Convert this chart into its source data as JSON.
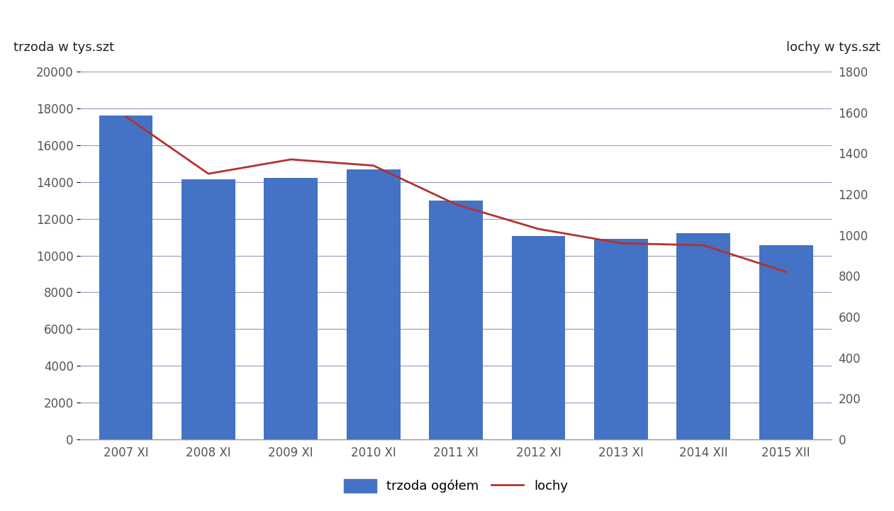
{
  "categories": [
    "2007 XI",
    "2008 XI",
    "2009 XI",
    "2010 XI",
    "2011 XI",
    "2012 XI",
    "2013 XI",
    "2014 XII",
    "2015 XII"
  ],
  "bar_values": [
    17600,
    14150,
    14200,
    14700,
    13000,
    11050,
    10900,
    11200,
    10550
  ],
  "line_values": [
    1580,
    1300,
    1370,
    1340,
    1150,
    1030,
    960,
    950,
    820
  ],
  "bar_color": "#4472C4",
  "line_color": "#B23232",
  "left_ylabel": "trzoda w tys.szt",
  "right_ylabel": "lochy w tys.szt",
  "left_ylim": [
    0,
    20000
  ],
  "right_ylim": [
    0,
    1800
  ],
  "left_yticks": [
    0,
    2000,
    4000,
    6000,
    8000,
    10000,
    12000,
    14000,
    16000,
    18000,
    20000
  ],
  "right_yticks": [
    0,
    200,
    400,
    600,
    800,
    1000,
    1200,
    1400,
    1600,
    1800
  ],
  "legend_bar_label": "trzoda ogółem",
  "legend_line_label": "lochy",
  "background_color": "#ffffff",
  "grid_color": "#9999BB",
  "spine_color": "#999999",
  "tick_color": "#555555"
}
